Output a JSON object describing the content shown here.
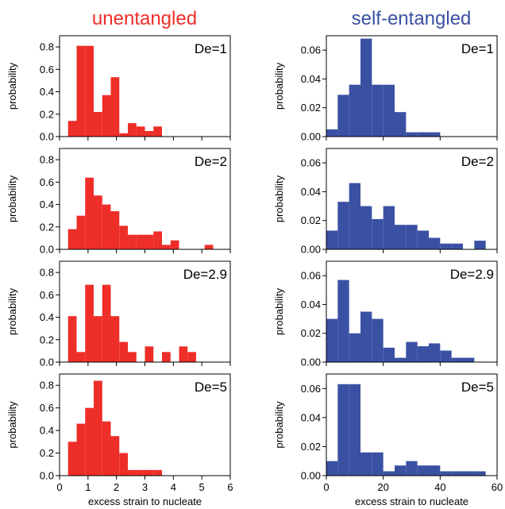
{
  "columns": [
    {
      "title": "unentangled",
      "color": "#ee2e28"
    },
    {
      "title": "self-entangled",
      "color": "#3a51a3"
    }
  ],
  "chart_data": [
    {
      "type": "bar",
      "column": 0,
      "row": 0,
      "annotation": "De=1",
      "ylabel": "probability",
      "xlabel": "",
      "xlim": [
        0,
        6
      ],
      "ylim": [
        0,
        0.9
      ],
      "xticks": [
        "0",
        "1",
        "2",
        "3",
        "4",
        "5",
        "6"
      ],
      "show_xticks": false,
      "yticks": [
        "0.0",
        "0.2",
        "0.4",
        "0.6",
        "0.8"
      ],
      "bin_edges": [
        0.3,
        0.6,
        0.9,
        1.2,
        1.5,
        1.8,
        2.1,
        2.4,
        2.7,
        3.0,
        3.3,
        3.6
      ],
      "values": [
        0.14,
        0.81,
        0.81,
        0.22,
        0.37,
        0.53,
        0.03,
        0.12,
        0.09,
        0.05,
        0.09
      ]
    },
    {
      "type": "bar",
      "column": 0,
      "row": 1,
      "annotation": "De=2",
      "ylabel": "probability",
      "xlabel": "",
      "xlim": [
        0,
        6
      ],
      "ylim": [
        0,
        0.9
      ],
      "xticks": [
        "0",
        "1",
        "2",
        "3",
        "4",
        "5",
        "6"
      ],
      "show_xticks": false,
      "yticks": [
        "0.0",
        "0.2",
        "0.4",
        "0.6",
        "0.8"
      ],
      "bin_edges": [
        0.3,
        0.6,
        0.9,
        1.2,
        1.5,
        1.8,
        2.1,
        2.4,
        2.7,
        3.0,
        3.3,
        3.6,
        3.9,
        4.2,
        4.5,
        4.8,
        5.1,
        5.4
      ],
      "values": [
        0.18,
        0.3,
        0.64,
        0.48,
        0.4,
        0.34,
        0.21,
        0.13,
        0.13,
        0.13,
        0.16,
        0.04,
        0.08,
        0.0,
        0.0,
        0.0,
        0.04
      ]
    },
    {
      "type": "bar",
      "column": 0,
      "row": 2,
      "annotation": "De=2.9",
      "ylabel": "probability",
      "xlabel": "",
      "xlim": [
        0,
        6
      ],
      "ylim": [
        0,
        0.9
      ],
      "xticks": [
        "0",
        "1",
        "2",
        "3",
        "4",
        "5",
        "6"
      ],
      "show_xticks": false,
      "yticks": [
        "0.0",
        "0.2",
        "0.4",
        "0.6",
        "0.8"
      ],
      "bin_edges": [
        0.3,
        0.6,
        0.9,
        1.2,
        1.5,
        1.8,
        2.1,
        2.4,
        2.7,
        3.0,
        3.3,
        3.6,
        3.9,
        4.2,
        4.5,
        4.8
      ],
      "values": [
        0.41,
        0.09,
        0.69,
        0.41,
        0.69,
        0.41,
        0.18,
        0.09,
        0.0,
        0.14,
        0.0,
        0.09,
        0.0,
        0.14,
        0.09
      ]
    },
    {
      "type": "bar",
      "column": 0,
      "row": 3,
      "annotation": "De=5",
      "ylabel": "probability",
      "xlabel": "excess strain to nucleate",
      "xlim": [
        0,
        6
      ],
      "ylim": [
        0,
        0.9
      ],
      "xticks": [
        "0",
        "1",
        "2",
        "3",
        "4",
        "5",
        "6"
      ],
      "show_xticks": true,
      "yticks": [
        "0.0",
        "0.2",
        "0.4",
        "0.6",
        "0.8"
      ],
      "bin_edges": [
        0.3,
        0.6,
        0.9,
        1.2,
        1.5,
        1.8,
        2.1,
        2.4,
        2.7,
        3.0,
        3.3,
        3.6
      ],
      "values": [
        0.3,
        0.46,
        0.6,
        0.84,
        0.48,
        0.35,
        0.2,
        0.05,
        0.05,
        0.05,
        0.05
      ]
    },
    {
      "type": "bar",
      "column": 1,
      "row": 0,
      "annotation": "De=1",
      "ylabel": "probability",
      "xlabel": "",
      "xlim": [
        0,
        60
      ],
      "ylim": [
        0,
        0.07
      ],
      "xticks": [
        "0",
        "20",
        "40",
        "60"
      ],
      "show_xticks": false,
      "yticks": [
        "0.00",
        "0.02",
        "0.04",
        "0.06"
      ],
      "bin_edges": [
        0,
        4,
        8,
        12,
        16,
        20,
        24,
        28,
        32,
        36,
        40
      ],
      "values": [
        0.005,
        0.029,
        0.036,
        0.068,
        0.036,
        0.036,
        0.017,
        0.003,
        0.003,
        0.003
      ]
    },
    {
      "type": "bar",
      "column": 1,
      "row": 1,
      "annotation": "De=2",
      "ylabel": "probability",
      "xlabel": "",
      "xlim": [
        0,
        60
      ],
      "ylim": [
        0,
        0.07
      ],
      "xticks": [
        "0",
        "20",
        "40",
        "60"
      ],
      "show_xticks": false,
      "yticks": [
        "0.00",
        "0.02",
        "0.04",
        "0.06"
      ],
      "bin_edges": [
        0,
        4,
        8,
        12,
        16,
        20,
        24,
        28,
        32,
        36,
        40,
        44,
        48,
        52,
        56
      ],
      "values": [
        0.013,
        0.033,
        0.046,
        0.03,
        0.021,
        0.03,
        0.017,
        0.017,
        0.013,
        0.008,
        0.004,
        0.004,
        0.0,
        0.006
      ]
    },
    {
      "type": "bar",
      "column": 1,
      "row": 2,
      "annotation": "De=2.9",
      "ylabel": "probability",
      "xlabel": "",
      "xlim": [
        0,
        60
      ],
      "ylim": [
        0,
        0.07
      ],
      "xticks": [
        "0",
        "20",
        "40",
        "60"
      ],
      "show_xticks": false,
      "yticks": [
        "0.00",
        "0.02",
        "0.04",
        "0.06"
      ],
      "bin_edges": [
        0,
        4,
        8,
        12,
        16,
        20,
        24,
        28,
        32,
        36,
        40,
        44,
        48,
        52
      ],
      "values": [
        0.03,
        0.057,
        0.02,
        0.035,
        0.03,
        0.01,
        0.003,
        0.014,
        0.011,
        0.013,
        0.008,
        0.003,
        0.003
      ]
    },
    {
      "type": "bar",
      "column": 1,
      "row": 3,
      "annotation": "De=5",
      "ylabel": "probability",
      "xlabel": "excess strain to nucleate",
      "xlim": [
        0,
        60
      ],
      "ylim": [
        0,
        0.07
      ],
      "xticks": [
        "0",
        "20",
        "40",
        "60"
      ],
      "show_xticks": true,
      "yticks": [
        "0.00",
        "0.02",
        "0.04",
        "0.06"
      ],
      "bin_edges": [
        0,
        4,
        8,
        12,
        16,
        20,
        24,
        28,
        32,
        36,
        40,
        44,
        48,
        52,
        56
      ],
      "values": [
        0.01,
        0.063,
        0.063,
        0.016,
        0.016,
        0.003,
        0.007,
        0.01,
        0.007,
        0.007,
        0.003,
        0.003,
        0.003,
        0.003
      ]
    }
  ]
}
